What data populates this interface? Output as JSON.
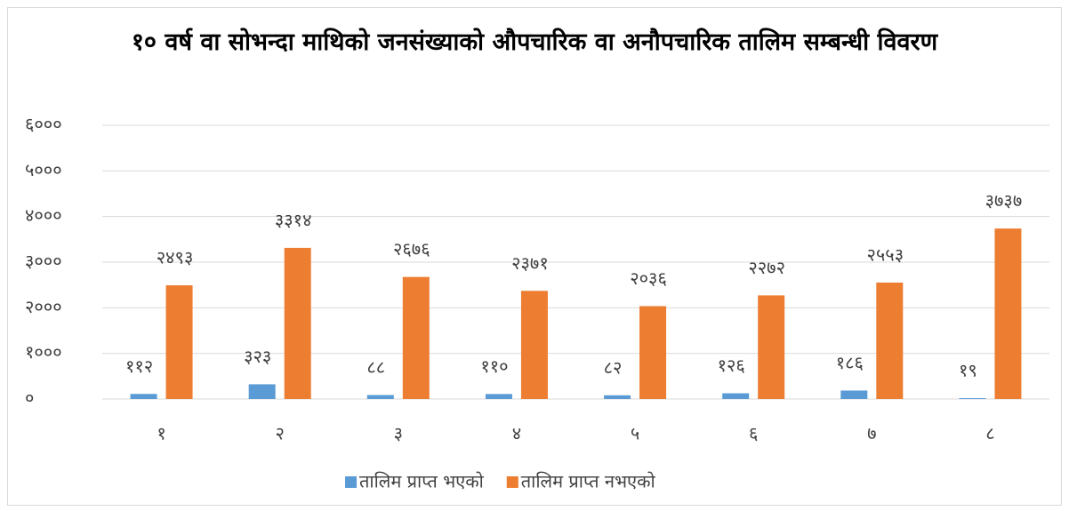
{
  "chart_data": {
    "type": "bar",
    "title": "१० वर्ष वा सोभन्दा माथिको जनसंख्याको औपचारिक वा अनौपचारिक तालिम सम्बन्धी विवरण",
    "categories": [
      "१",
      "२",
      "३",
      "४",
      "५",
      "६",
      "७",
      "८"
    ],
    "series": [
      {
        "name": "तालिम प्राप्त भएको",
        "color": "#5b9bd5",
        "values": [
          112,
          323,
          88,
          110,
          82,
          126,
          186,
          19
        ],
        "value_labels": [
          "११२",
          "३२३",
          "८८",
          "११०",
          "८२",
          "१२६",
          "१८६",
          "१९"
        ]
      },
      {
        "name": "तालिम प्राप्त नभएको",
        "color": "#ed7d31",
        "values": [
          2493,
          3314,
          2676,
          2371,
          2036,
          2272,
          2553,
          3737
        ],
        "value_labels": [
          "२४९३",
          "३३१४",
          "२६७६",
          "२३७१",
          "२०३६",
          "२२७२",
          "२५५३",
          "३७३७"
        ]
      }
    ],
    "ylim": [
      0,
      6000
    ],
    "yticks": [
      {
        "value": 0,
        "label": "०"
      },
      {
        "value": 1000,
        "label": "१०००"
      },
      {
        "value": 2000,
        "label": "२०००"
      },
      {
        "value": 3000,
        "label": "३०००"
      },
      {
        "value": 4000,
        "label": "४०००"
      },
      {
        "value": 5000,
        "label": "५०००"
      },
      {
        "value": 6000,
        "label": "६०००"
      }
    ],
    "grid": true,
    "legend": "bottom"
  }
}
